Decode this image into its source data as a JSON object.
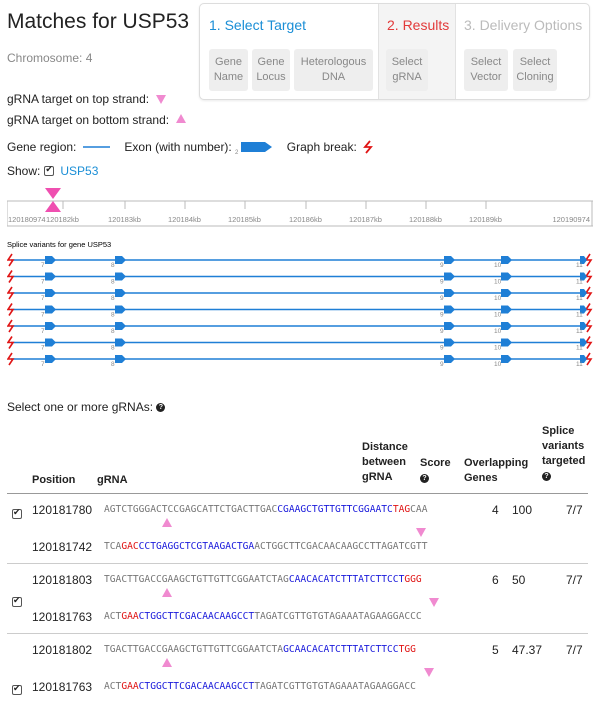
{
  "page": {
    "title": "Matches for USP53",
    "chromosome": "Chromosome: 4"
  },
  "wizard": {
    "steps": [
      {
        "label": "1. Select Target",
        "color": "#1a8ed6"
      },
      {
        "label": "2. Results",
        "color": "#e23a3a"
      },
      {
        "label": "3. Delivery Options",
        "color": "#bbbbbb"
      }
    ],
    "substeps": [
      "Gene Name",
      "Gene Locus",
      "Heterologous DNA",
      "Select gRNA",
      "Select Vector",
      "Select Cloning"
    ]
  },
  "legend": {
    "top_strand": "gRNA target on top strand:",
    "bottom_strand": "gRNA target on bottom strand:",
    "gene_region": "Gene region:",
    "exon": "Exon (with number):",
    "exon_number": "2",
    "graph_break": "Graph break:"
  },
  "show": {
    "label": "Show:",
    "gene": "USP53",
    "checked": true
  },
  "graph": {
    "axis_ticks": [
      "120180974",
      "120182kb",
      "120183kb",
      "120184kb",
      "120185kb",
      "120186kb",
      "120187kb",
      "120188kb",
      "120189kb",
      "120190974"
    ],
    "splice_title": "Splice variants for gene USP53",
    "variants": [
      {
        "exons": [
          "7",
          "8",
          "9",
          "10",
          "11"
        ]
      },
      {
        "exons": [
          "7",
          "8",
          "9",
          "10",
          "11"
        ]
      },
      {
        "exons": [
          "7",
          "8",
          "9",
          "10",
          "11"
        ]
      },
      {
        "exons": [
          "7",
          "8",
          "9",
          "10",
          "11"
        ]
      },
      {
        "exons": [
          "7",
          "8",
          "9",
          "10",
          "11"
        ]
      },
      {
        "exons": [
          "7",
          "8",
          "9",
          "10",
          "11"
        ]
      },
      {
        "exons": [
          "7",
          "8",
          "9",
          "10",
          "11"
        ]
      }
    ],
    "line_color": "#1f7fd6",
    "break_color": "#e01515",
    "marker_color": "#f08ad0"
  },
  "select_label": "Select one or more gRNAs:",
  "table": {
    "headers": {
      "position": "Position",
      "grna": "gRNA",
      "distance": [
        "Distance",
        "between",
        "gRNA"
      ],
      "score": "Score",
      "overlapping": [
        "Overlapping",
        "Genes"
      ],
      "splice": [
        "Splice",
        "variants",
        "targeted"
      ]
    },
    "rows": [
      {
        "checked": true,
        "position": "120181780",
        "top_seq": [
          [
            "g",
            "AGTCTGGGACTCCGAGCATTCTGACTTGAC"
          ],
          [
            "b",
            "CGAAGCTGTTGTTCGGAATC"
          ],
          [
            "r",
            "TAG"
          ],
          [
            "g",
            "CAA"
          ]
        ],
        "bottom_position": "120181742",
        "bottom_seq": [
          [
            "g",
            "TCA"
          ],
          [
            "r",
            "GAC"
          ],
          [
            "b",
            "CCTGAGGCTCGTAAGACTGA"
          ],
          [
            "g",
            "ACTGGCTTCGACAACAAGCCTTAGATCGTT"
          ]
        ],
        "distance": "4",
        "score": "100",
        "overlapping": "",
        "splice": "7/7"
      },
      {
        "checked": true,
        "position": "120181803",
        "top_seq": [
          [
            "g",
            "TGACTTGACCGAAGCTGTTGTTCGGAATCTAG"
          ],
          [
            "b",
            "CAACACATCTTTATCTTCCT"
          ],
          [
            "r",
            "GGG"
          ]
        ],
        "bottom_position": "120181763",
        "bottom_seq": [
          [
            "g",
            "ACT"
          ],
          [
            "r",
            "GAA"
          ],
          [
            "b",
            "CTGGCTTCGACAACAAGCCT"
          ],
          [
            "g",
            "TAGATCGTTGTGTAGAAATAGAAGGACCC"
          ]
        ],
        "distance": "6",
        "score": "50",
        "overlapping": "",
        "splice": "7/7"
      },
      {
        "checked": true,
        "position": "120181802",
        "top_seq": [
          [
            "g",
            "TGACTTGACCGAAGCTGTTGTTCGGAATCTA"
          ],
          [
            "b",
            "GCAACACATCTTTATCTTCC"
          ],
          [
            "r",
            "TGG"
          ]
        ],
        "bottom_position": "120181763",
        "bottom_seq": [
          [
            "g",
            "ACT"
          ],
          [
            "r",
            "GAA"
          ],
          [
            "b",
            "CTGGCTTCGACAACAAGCCT"
          ],
          [
            "g",
            "TAGATCGTTGTGTAGAAATAGAAGGACC"
          ]
        ],
        "distance": "5",
        "score": "47.37",
        "overlapping": "",
        "splice": "7/7"
      }
    ]
  }
}
